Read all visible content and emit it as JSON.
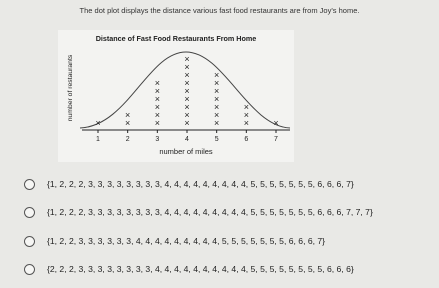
{
  "question": "The dot plot displays the distance various fast food restaurants are from Joy's home.",
  "chart_data": {
    "type": "dot",
    "title": "Distance of Fast Food Restaurants From Home",
    "x_label": "number of miles",
    "y_label": "number of restaurants",
    "x": [
      1,
      2,
      3,
      4,
      5,
      6,
      7
    ],
    "values": [
      1,
      2,
      6,
      9,
      7,
      3,
      1
    ],
    "xlim": [
      0.5,
      7.5
    ],
    "xticks": [
      1,
      2,
      3,
      4,
      5,
      6,
      7
    ],
    "marker": "×",
    "color": "#222"
  },
  "options": [
    "{1, 2, 2, 2, 3, 3, 3, 3, 3, 3, 3, 3, 4, 4, 4, 4, 4, 4, 4, 4, 4, 5, 5, 5, 5, 5, 5, 5, 6, 6, 6, 7}",
    "{1, 2, 2, 2, 3, 3, 3, 3, 3, 3, 3, 3, 4, 4, 4, 4, 4, 4, 4, 4, 4, 5, 5, 5, 5, 5, 5, 5, 6, 6, 6, 7, 7, 7}",
    "{1, 2, 2, 3, 3, 3, 3, 3, 3, 4, 4, 4, 4, 4, 4, 4, 4, 4, 5, 5, 5, 5, 5, 5, 5, 6, 6, 6, 7}",
    "{2, 2, 2, 3, 3, 3, 3, 3, 3, 3, 3, 4, 4, 4, 4, 4, 4, 4, 4, 4, 4, 5, 5, 5, 5, 5, 5, 5, 5, 6, 6, 6}"
  ]
}
